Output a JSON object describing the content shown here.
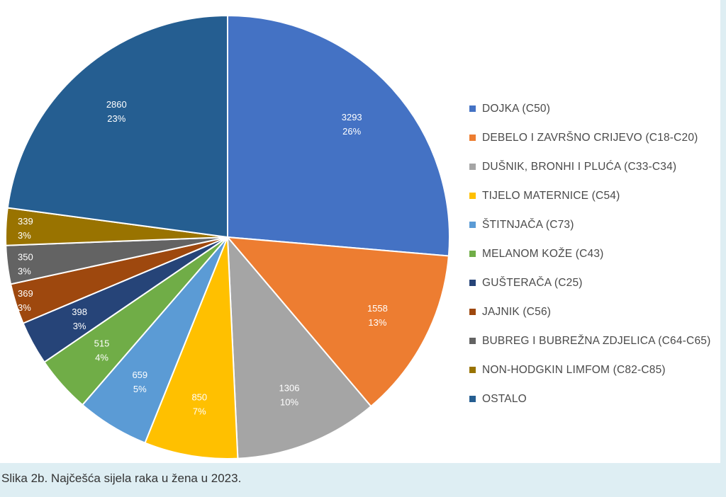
{
  "chart_data": {
    "type": "pie",
    "categories": [
      "DOJKA (C50)",
      "DEBELO I ZAVRŠNO CRIJEVO (C18-C20)",
      "DUŠNIK, BRONHI I PLUĆA (C33-C34)",
      "TIJELO MATERNICE (C54)",
      "ŠTITNJAČA (C73)",
      "MELANOM KOŽE (C43)",
      "GUŠTERAČA (C25)",
      "JAJNIK (C56)",
      "BUBREG I BUBREŽNA ZDJELICA (C64-C65)",
      "NON-HODGKIN LIMFOM (C82-C85)",
      "OSTALO"
    ],
    "values": [
      3293,
      1558,
      1306,
      850,
      659,
      515,
      398,
      369,
      350,
      339,
      2860
    ],
    "percent_labels": [
      "26%",
      "13%",
      "10%",
      "7%",
      "5%",
      "4%",
      "3%",
      "3%",
      "3%",
      "3%",
      "23%"
    ],
    "colors": [
      "#4472c4",
      "#ed7d31",
      "#a5a5a5",
      "#ffc000",
      "#5b9bd5",
      "#70ad47",
      "#264478",
      "#9e480e",
      "#636363",
      "#997300",
      "#255e91"
    ],
    "start_angle_deg": 0,
    "direction": "clockwise",
    "legend_position": "right",
    "title": ""
  },
  "caption": "Slika 2b. Najčešća sijela raka u žena u 2023."
}
